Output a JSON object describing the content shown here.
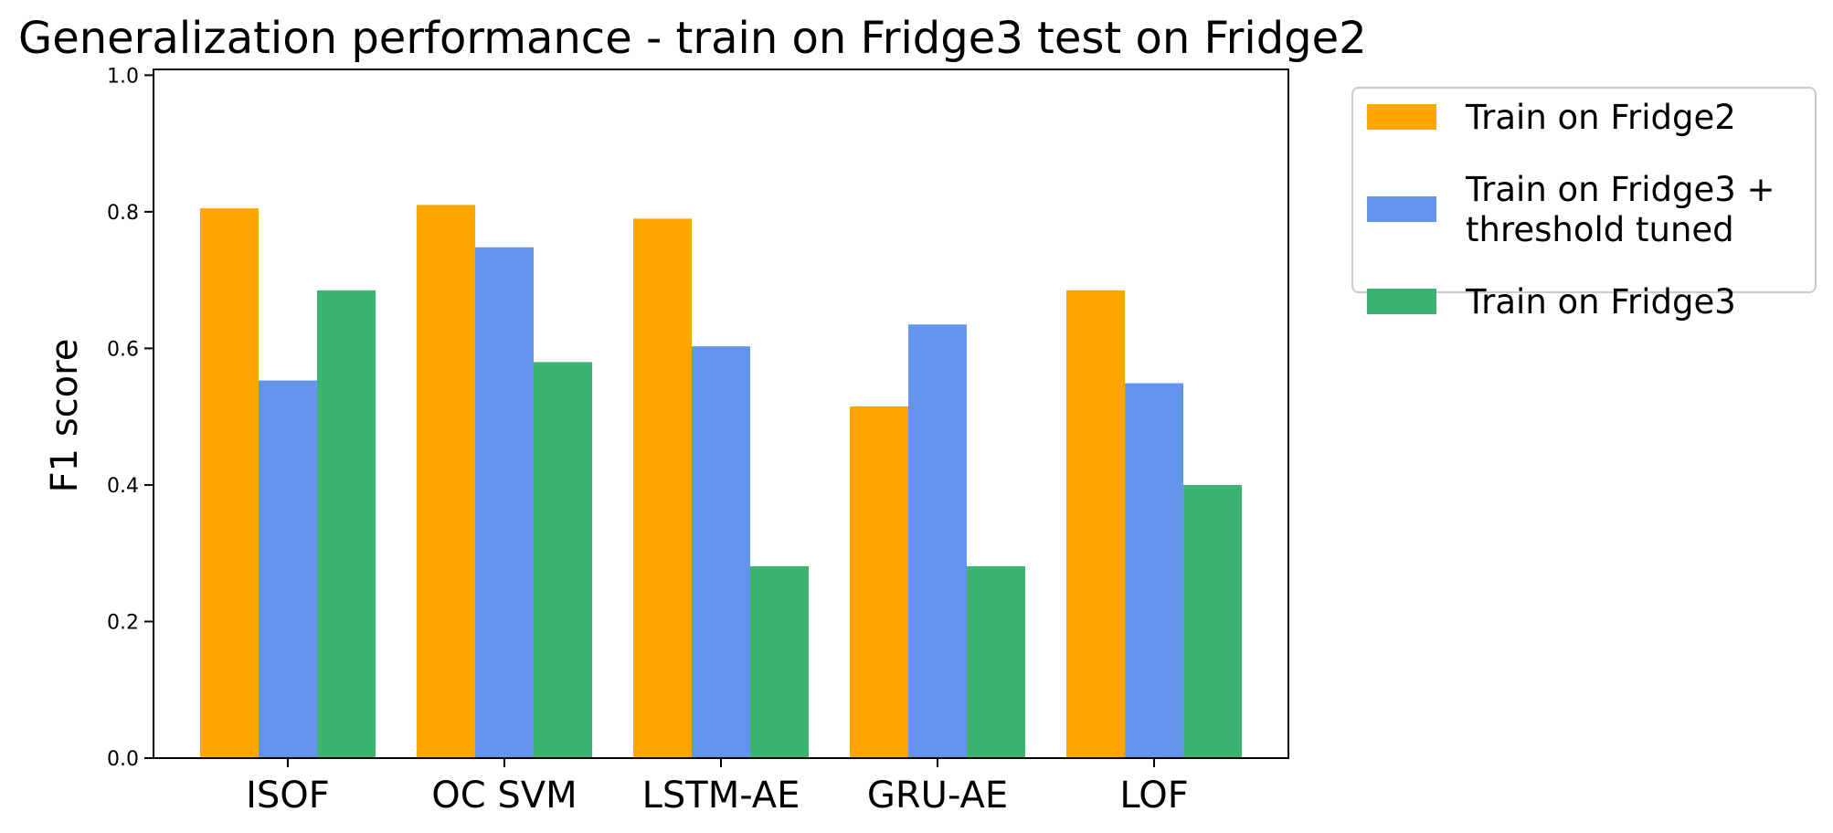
{
  "chart_data": {
    "type": "bar",
    "title": "Generalization performance - train on Fridge3 test on Fridge2",
    "xlabel": "",
    "ylabel": "F1 score",
    "categories": [
      "ISOF",
      "OC SVM",
      "LSTM-AE",
      "GRU-AE",
      "LOF"
    ],
    "series": [
      {
        "name": "Train on Fridge2",
        "color": "#FFA500",
        "values": [
          0.805,
          0.81,
          0.79,
          0.515,
          0.685
        ]
      },
      {
        "name": "Train on Fridge3 + threshold tuned",
        "name_lines": [
          "Train on Fridge3 +",
          "threshold tuned"
        ],
        "color": "#6495ED",
        "values": [
          0.553,
          0.748,
          0.603,
          0.635,
          0.549
        ]
      },
      {
        "name": "Train on Fridge3",
        "color": "#3CB371",
        "values": [
          0.685,
          0.58,
          0.281,
          0.281,
          0.4
        ]
      }
    ],
    "ylim": [
      0,
      1.0
    ],
    "yticks": [
      0.0,
      0.2,
      0.4,
      0.6,
      0.8,
      1.0
    ],
    "ytick_labels": [
      "0.0",
      "0.2",
      "0.4",
      "0.6",
      "0.8",
      "1.0"
    ],
    "grid": false,
    "legend_position": "outside-top-right"
  }
}
